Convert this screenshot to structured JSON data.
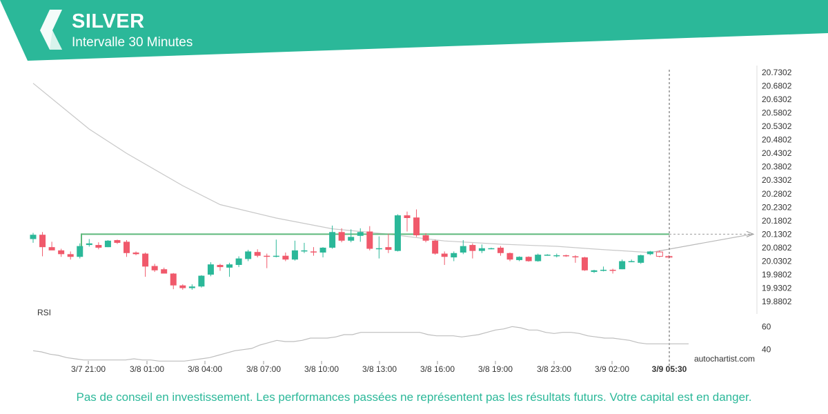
{
  "header": {
    "symbol": "SILVER",
    "interval": "Intervalle 30 Minutes",
    "brand_color": "#2bb899",
    "logo": "autochartist-logo-icon"
  },
  "disclaimer": "Pas de conseil en investissement. Les performances passées ne représentent pas les résultats futurs. Votre capital est en danger.",
  "chart_data": {
    "type": "candlestick",
    "y_ticks": [
      "20.7302",
      "20.6802",
      "20.6302",
      "20.5802",
      "20.5302",
      "20.4802",
      "20.4302",
      "20.3802",
      "20.3302",
      "20.2802",
      "20.2302",
      "20.1802",
      "20.1302",
      "20.0802",
      "20.0302",
      "19.9802",
      "19.9302",
      "19.8802"
    ],
    "ylim": [
      19.8802,
      20.7302
    ],
    "x_ticks": [
      "3/7 21:00",
      "3/8 01:00",
      "3/8 04:00",
      "3/8 07:00",
      "3/8 10:00",
      "3/8 13:00",
      "3/8 16:00",
      "3/8 19:00",
      "3/8 23:00",
      "3/9 02:00"
    ],
    "highlight_time": "3/9 05:30",
    "resistance_level": 20.1302,
    "colors": {
      "up": "#2bb899",
      "down": "#f0596b",
      "level": "#5cb87a",
      "ma": "#c8c8c8"
    },
    "candles": [
      {
        "o": 20.112,
        "h": 20.135,
        "l": 20.098,
        "c": 20.128
      },
      {
        "o": 20.128,
        "h": 20.138,
        "l": 20.048,
        "c": 20.082
      },
      {
        "o": 20.082,
        "h": 20.102,
        "l": 20.072,
        "c": 20.07
      },
      {
        "o": 20.07,
        "h": 20.076,
        "l": 20.046,
        "c": 20.056
      },
      {
        "o": 20.056,
        "h": 20.066,
        "l": 20.036,
        "c": 20.046
      },
      {
        "o": 20.046,
        "h": 20.096,
        "l": 20.04,
        "c": 20.086
      },
      {
        "o": 20.09,
        "h": 20.112,
        "l": 20.084,
        "c": 20.096
      },
      {
        "o": 20.09,
        "h": 20.1,
        "l": 20.074,
        "c": 20.08
      },
      {
        "o": 20.082,
        "h": 20.108,
        "l": 20.082,
        "c": 20.106
      },
      {
        "o": 20.108,
        "h": 20.11,
        "l": 20.094,
        "c": 20.098
      },
      {
        "o": 20.102,
        "h": 20.108,
        "l": 20.046,
        "c": 20.06
      },
      {
        "o": 20.062,
        "h": 20.066,
        "l": 20.052,
        "c": 20.056
      },
      {
        "o": 20.058,
        "h": 20.062,
        "l": 19.972,
        "c": 20.01
      },
      {
        "o": 20.012,
        "h": 20.02,
        "l": 19.99,
        "c": 19.996
      },
      {
        "o": 20.0,
        "h": 20.006,
        "l": 19.986,
        "c": 19.984
      },
      {
        "o": 19.984,
        "h": 19.986,
        "l": 19.926,
        "c": 19.94
      },
      {
        "o": 19.94,
        "h": 19.944,
        "l": 19.924,
        "c": 19.93
      },
      {
        "o": 19.93,
        "h": 19.944,
        "l": 19.924,
        "c": 19.936
      },
      {
        "o": 19.936,
        "h": 19.978,
        "l": 19.932,
        "c": 19.976
      },
      {
        "o": 19.98,
        "h": 20.026,
        "l": 19.974,
        "c": 20.018
      },
      {
        "o": 20.016,
        "h": 20.02,
        "l": 19.994,
        "c": 20.008
      },
      {
        "o": 20.006,
        "h": 20.024,
        "l": 19.972,
        "c": 20.018
      },
      {
        "o": 20.016,
        "h": 20.048,
        "l": 20.008,
        "c": 20.04
      },
      {
        "o": 20.038,
        "h": 20.072,
        "l": 20.03,
        "c": 20.066
      },
      {
        "o": 20.064,
        "h": 20.074,
        "l": 20.044,
        "c": 20.05
      },
      {
        "o": 20.05,
        "h": 20.058,
        "l": 20.004,
        "c": 20.048
      },
      {
        "o": 20.05,
        "h": 20.11,
        "l": 20.044,
        "c": 20.05
      },
      {
        "o": 20.05,
        "h": 20.062,
        "l": 20.03,
        "c": 20.036
      },
      {
        "o": 20.036,
        "h": 20.106,
        "l": 20.032,
        "c": 20.07
      },
      {
        "o": 20.066,
        "h": 20.098,
        "l": 20.06,
        "c": 20.07
      },
      {
        "o": 20.066,
        "h": 20.082,
        "l": 20.05,
        "c": 20.064
      },
      {
        "o": 20.062,
        "h": 20.082,
        "l": 20.044,
        "c": 20.08
      },
      {
        "o": 20.08,
        "h": 20.162,
        "l": 20.076,
        "c": 20.138
      },
      {
        "o": 20.138,
        "h": 20.152,
        "l": 20.1,
        "c": 20.106
      },
      {
        "o": 20.106,
        "h": 20.148,
        "l": 20.1,
        "c": 20.12
      },
      {
        "o": 20.124,
        "h": 20.152,
        "l": 20.102,
        "c": 20.138
      },
      {
        "o": 20.14,
        "h": 20.16,
        "l": 20.07,
        "c": 20.076
      },
      {
        "o": 20.078,
        "h": 20.122,
        "l": 20.04,
        "c": 20.078
      },
      {
        "o": 20.082,
        "h": 20.132,
        "l": 20.06,
        "c": 20.072
      },
      {
        "o": 20.068,
        "h": 20.204,
        "l": 20.066,
        "c": 20.2
      },
      {
        "o": 20.2,
        "h": 20.214,
        "l": 20.14,
        "c": 20.19
      },
      {
        "o": 20.192,
        "h": 20.222,
        "l": 20.12,
        "c": 20.126
      },
      {
        "o": 20.126,
        "h": 20.134,
        "l": 20.1,
        "c": 20.106
      },
      {
        "o": 20.106,
        "h": 20.11,
        "l": 20.054,
        "c": 20.058
      },
      {
        "o": 20.058,
        "h": 20.066,
        "l": 20.016,
        "c": 20.046
      },
      {
        "o": 20.044,
        "h": 20.066,
        "l": 20.03,
        "c": 20.06
      },
      {
        "o": 20.062,
        "h": 20.108,
        "l": 20.056,
        "c": 20.086
      },
      {
        "o": 20.09,
        "h": 20.096,
        "l": 20.04,
        "c": 20.068
      },
      {
        "o": 20.068,
        "h": 20.092,
        "l": 20.06,
        "c": 20.078
      },
      {
        "o": 20.078,
        "h": 20.08,
        "l": 20.074,
        "c": 20.078
      },
      {
        "o": 20.08,
        "h": 20.086,
        "l": 20.05,
        "c": 20.06
      },
      {
        "o": 20.06,
        "h": 20.062,
        "l": 20.03,
        "c": 20.036
      },
      {
        "o": 20.034,
        "h": 20.048,
        "l": 20.03,
        "c": 20.046
      },
      {
        "o": 20.046,
        "h": 20.048,
        "l": 20.028,
        "c": 20.03
      },
      {
        "o": 20.03,
        "h": 20.058,
        "l": 20.028,
        "c": 20.054
      },
      {
        "o": 20.054,
        "h": 20.056,
        "l": 20.05,
        "c": 20.054
      },
      {
        "o": 20.05,
        "h": 20.058,
        "l": 20.044,
        "c": 20.052
      },
      {
        "o": 20.052,
        "h": 20.054,
        "l": 20.046,
        "c": 20.048
      },
      {
        "o": 20.048,
        "h": 20.052,
        "l": 20.024,
        "c": 20.046
      },
      {
        "o": 20.044,
        "h": 20.046,
        "l": 19.994,
        "c": 19.996
      },
      {
        "o": 19.99,
        "h": 19.998,
        "l": 19.986,
        "c": 19.996
      },
      {
        "o": 19.998,
        "h": 20.01,
        "l": 19.992,
        "c": 19.998
      },
      {
        "o": 19.998,
        "h": 20.002,
        "l": 19.984,
        "c": 19.996
      },
      {
        "o": 20.0,
        "h": 20.036,
        "l": 20.0,
        "c": 20.03
      },
      {
        "o": 20.03,
        "h": 20.036,
        "l": 20.026,
        "c": 20.03
      },
      {
        "o": 20.024,
        "h": 20.054,
        "l": 20.02,
        "c": 20.052
      },
      {
        "o": 20.056,
        "h": 20.068,
        "l": 20.052,
        "c": 20.066
      }
    ],
    "forecast_candles": [
      {
        "o": 20.064,
        "h": 20.07,
        "l": 20.044,
        "c": 20.048
      },
      {
        "o": 20.048,
        "h": 20.052,
        "l": 20.04,
        "c": 20.046
      }
    ],
    "ma": [
      [
        0,
        20.69
      ],
      [
        6,
        20.52
      ],
      [
        10,
        20.43
      ],
      [
        16,
        20.31
      ],
      [
        20,
        20.24
      ],
      [
        26,
        20.19
      ],
      [
        32,
        20.15
      ],
      [
        38,
        20.13
      ],
      [
        44,
        20.105
      ],
      [
        50,
        20.093
      ],
      [
        56,
        20.085
      ],
      [
        60,
        20.075
      ],
      [
        66,
        20.062
      ]
    ],
    "rsi": {
      "label": "RSI",
      "ticks": [
        60,
        40
      ],
      "range": [
        29,
        74
      ],
      "values": [
        39,
        38,
        36,
        35,
        33,
        32,
        31,
        31,
        31,
        31,
        31,
        31,
        32,
        31,
        31,
        30,
        30,
        30,
        30,
        31,
        32,
        33,
        35,
        37,
        39,
        40,
        41,
        44,
        46,
        48,
        47,
        47,
        48,
        50,
        50,
        50,
        51,
        53,
        53,
        55,
        55,
        55,
        55,
        55,
        55,
        55,
        55,
        53,
        52,
        52,
        52,
        51,
        52,
        53,
        55,
        57,
        58,
        60,
        59,
        57,
        57,
        55,
        54,
        55,
        55,
        54,
        52,
        51,
        50,
        50,
        49,
        48,
        46,
        45,
        45,
        45,
        45,
        45,
        45
      ]
    },
    "watermark": "autochartist.com"
  }
}
